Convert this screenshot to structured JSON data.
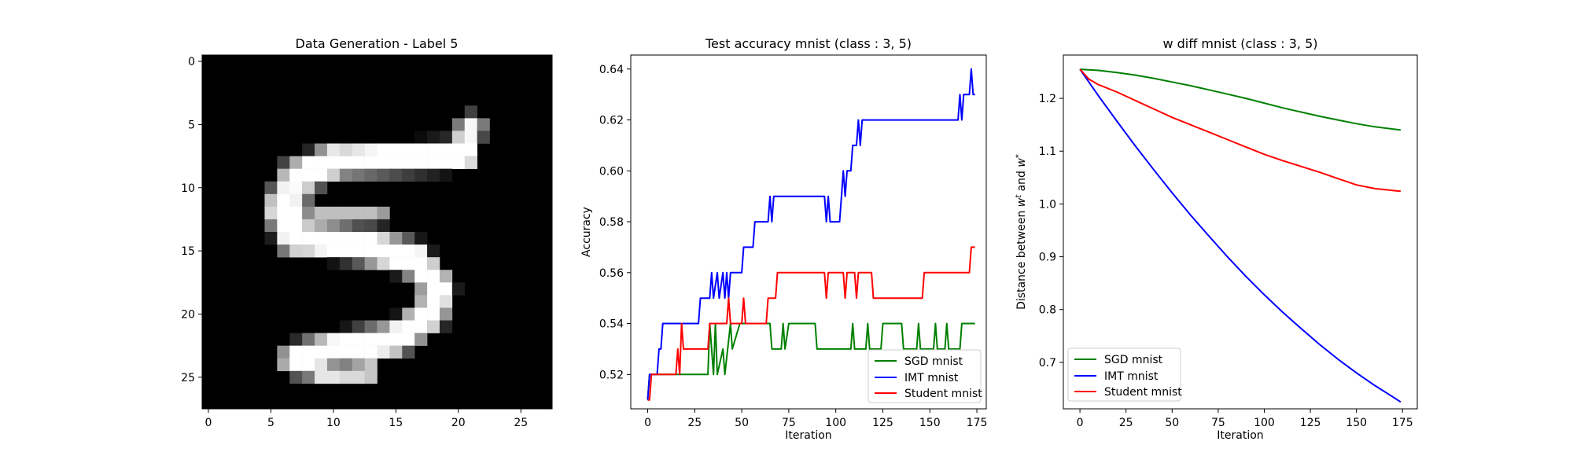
{
  "figure": {
    "background": "#ffffff"
  },
  "chart_data": [
    {
      "type": "heatmap",
      "title": "Data Generation - Label 5",
      "xlim": [
        0,
        27
      ],
      "ylim": [
        0,
        27
      ],
      "xticks": [
        0,
        5,
        10,
        15,
        20,
        25
      ],
      "yticks": [
        0,
        5,
        10,
        15,
        20,
        25
      ],
      "colormap": "gray",
      "value_range": [
        0,
        1
      ],
      "strokes": [
        {
          "from": [
            21,
            5.2
          ],
          "to": [
            20.4,
            7.4
          ],
          "width": 1.4,
          "intensity": 0.97
        },
        {
          "from": [
            20.4,
            7.4
          ],
          "to": [
            10,
            7.9
          ],
          "width": 1.6,
          "intensity": 1.0
        },
        {
          "from": [
            10,
            7.9
          ],
          "to": [
            7.2,
            9.2
          ],
          "width": 1.8,
          "intensity": 1.0
        },
        {
          "from": [
            7.2,
            9.2
          ],
          "to": [
            6,
            11.6
          ],
          "width": 2.0,
          "intensity": 0.95
        },
        {
          "from": [
            6,
            11.6
          ],
          "to": [
            7,
            13.9
          ],
          "width": 2.0,
          "intensity": 1.0
        },
        {
          "from": [
            7,
            13.9
          ],
          "to": [
            12,
            14.5
          ],
          "width": 1.8,
          "intensity": 1.0
        },
        {
          "from": [
            12,
            14.5
          ],
          "to": [
            16.4,
            15.6
          ],
          "width": 1.8,
          "intensity": 1.0
        },
        {
          "from": [
            16.4,
            15.6
          ],
          "to": [
            18.4,
            17.9
          ],
          "width": 1.7,
          "intensity": 1.0
        },
        {
          "from": [
            18.4,
            17.9
          ],
          "to": [
            17.8,
            20
          ],
          "width": 1.7,
          "intensity": 1.0
        },
        {
          "from": [
            17.8,
            20
          ],
          "to": [
            15,
            22
          ],
          "width": 1.7,
          "intensity": 1.0
        },
        {
          "from": [
            15,
            22
          ],
          "to": [
            10,
            22.8
          ],
          "width": 1.7,
          "intensity": 1.0
        },
        {
          "from": [
            10,
            22.8
          ],
          "to": [
            7,
            23.6
          ],
          "width": 1.7,
          "intensity": 1.0
        },
        {
          "from": [
            7,
            23.6
          ],
          "to": [
            9.6,
            24.8
          ],
          "width": 1.2,
          "intensity": 0.9
        },
        {
          "from": [
            9.6,
            24.8
          ],
          "to": [
            13,
            24.5
          ],
          "width": 1.0,
          "intensity": 0.85
        },
        {
          "from": [
            8.5,
            12.2
          ],
          "to": [
            13.6,
            12.3
          ],
          "width": 0.9,
          "intensity": 0.75
        }
      ]
    },
    {
      "type": "line",
      "title": "Test accuracy mnist (class : 3, 5)",
      "xlabel": "Iteration",
      "ylabel": "Accuracy",
      "xlim": [
        -9,
        180
      ],
      "ylim": [
        0.5065,
        0.6455
      ],
      "xticks": [
        0,
        25,
        50,
        75,
        100,
        125,
        150,
        175
      ],
      "yticks": [
        0.52,
        0.54,
        0.56,
        0.58,
        0.6,
        0.62,
        0.64
      ],
      "ytick_labels": [
        "0.52",
        "0.54",
        "0.56",
        "0.58",
        "0.60",
        "0.62",
        "0.64"
      ],
      "legend": "bottom-right",
      "series": [
        {
          "name": "SGD mnist",
          "color": "#008000",
          "points": [
            [
              0,
              0.51
            ],
            [
              1,
              0.52
            ],
            [
              32,
              0.52
            ],
            [
              33,
              0.54
            ],
            [
              35,
              0.52
            ],
            [
              36,
              0.54
            ],
            [
              37,
              0.52
            ],
            [
              40,
              0.53
            ],
            [
              41,
              0.52
            ],
            [
              44,
              0.54
            ],
            [
              45,
              0.53
            ],
            [
              49,
              0.54
            ],
            [
              65,
              0.54
            ],
            [
              66,
              0.53
            ],
            [
              71,
              0.53
            ],
            [
              72,
              0.54
            ],
            [
              73,
              0.53
            ],
            [
              75,
              0.54
            ],
            [
              89,
              0.54
            ],
            [
              90,
              0.53
            ],
            [
              108,
              0.53
            ],
            [
              109,
              0.54
            ],
            [
              110,
              0.53
            ],
            [
              116,
              0.53
            ],
            [
              117,
              0.54
            ],
            [
              118,
              0.53
            ],
            [
              124,
              0.53
            ],
            [
              125,
              0.54
            ],
            [
              135,
              0.54
            ],
            [
              136,
              0.53
            ],
            [
              143,
              0.53
            ],
            [
              144,
              0.54
            ],
            [
              145,
              0.53
            ],
            [
              152,
              0.53
            ],
            [
              153,
              0.54
            ],
            [
              154,
              0.53
            ],
            [
              158,
              0.53
            ],
            [
              159,
              0.54
            ],
            [
              160,
              0.53
            ],
            [
              166,
              0.53
            ],
            [
              167,
              0.54
            ],
            [
              174,
              0.54
            ]
          ]
        },
        {
          "name": "IMT mnist",
          "color": "#0000ff",
          "points": [
            [
              0,
              0.51
            ],
            [
              1,
              0.52
            ],
            [
              5,
              0.52
            ],
            [
              6,
              0.53
            ],
            [
              7,
              0.53
            ],
            [
              8,
              0.54
            ],
            [
              27,
              0.54
            ],
            [
              28,
              0.55
            ],
            [
              33,
              0.55
            ],
            [
              34,
              0.56
            ],
            [
              35,
              0.55
            ],
            [
              37,
              0.56
            ],
            [
              38,
              0.55
            ],
            [
              40,
              0.56
            ],
            [
              41,
              0.55
            ],
            [
              42,
              0.56
            ],
            [
              43,
              0.55
            ],
            [
              44,
              0.56
            ],
            [
              50,
              0.56
            ],
            [
              51,
              0.57
            ],
            [
              56,
              0.57
            ],
            [
              57,
              0.58
            ],
            [
              64,
              0.58
            ],
            [
              65,
              0.59
            ],
            [
              66,
              0.58
            ],
            [
              67,
              0.59
            ],
            [
              94,
              0.59
            ],
            [
              95,
              0.58
            ],
            [
              96,
              0.59
            ],
            [
              97,
              0.58
            ],
            [
              102,
              0.58
            ],
            [
              103,
              0.59
            ],
            [
              104,
              0.6
            ],
            [
              105,
              0.59
            ],
            [
              106,
              0.6
            ],
            [
              108,
              0.6
            ],
            [
              109,
              0.61
            ],
            [
              111,
              0.61
            ],
            [
              112,
              0.62
            ],
            [
              113,
              0.61
            ],
            [
              114,
              0.62
            ],
            [
              165,
              0.62
            ],
            [
              166,
              0.63
            ],
            [
              167,
              0.62
            ],
            [
              168,
              0.63
            ],
            [
              171,
              0.63
            ],
            [
              172,
              0.64
            ],
            [
              173,
              0.63
            ],
            [
              174,
              0.63
            ]
          ]
        },
        {
          "name": "Student mnist",
          "color": "#ff0000",
          "points": [
            [
              0,
              0.51
            ],
            [
              1,
              0.51
            ],
            [
              2,
              0.52
            ],
            [
              15,
              0.52
            ],
            [
              16,
              0.53
            ],
            [
              17,
              0.52
            ],
            [
              18,
              0.54
            ],
            [
              19,
              0.53
            ],
            [
              32,
              0.53
            ],
            [
              33,
              0.54
            ],
            [
              42,
              0.54
            ],
            [
              43,
              0.55
            ],
            [
              44,
              0.54
            ],
            [
              50,
              0.54
            ],
            [
              51,
              0.55
            ],
            [
              52,
              0.54
            ],
            [
              63,
              0.54
            ],
            [
              64,
              0.55
            ],
            [
              68,
              0.55
            ],
            [
              69,
              0.56
            ],
            [
              94,
              0.56
            ],
            [
              95,
              0.55
            ],
            [
              96,
              0.56
            ],
            [
              104,
              0.56
            ],
            [
              105,
              0.55
            ],
            [
              106,
              0.56
            ],
            [
              110,
              0.56
            ],
            [
              111,
              0.55
            ],
            [
              112,
              0.56
            ],
            [
              119,
              0.56
            ],
            [
              120,
              0.55
            ],
            [
              146,
              0.55
            ],
            [
              147,
              0.56
            ],
            [
              171,
              0.56
            ],
            [
              172,
              0.57
            ],
            [
              174,
              0.57
            ]
          ]
        }
      ]
    },
    {
      "type": "line",
      "title": "w diff mnist (class : 3, 5)",
      "xlabel": "Iteration",
      "ylabel": "Distance between w^t and w^*",
      "xlim": [
        -9,
        183
      ],
      "ylim": [
        0.612,
        1.282
      ],
      "xticks": [
        0,
        25,
        50,
        75,
        100,
        125,
        150,
        175
      ],
      "yticks": [
        0.7,
        0.8,
        0.9,
        1.0,
        1.1,
        1.2
      ],
      "ytick_labels": [
        "0.7",
        "0.8",
        "0.9",
        "1.0",
        "1.1",
        "1.2"
      ],
      "legend": "bottom-left",
      "series": [
        {
          "name": "SGD mnist",
          "color": "#008000",
          "points": [
            [
              0,
              1.255
            ],
            [
              10,
              1.253
            ],
            [
              20,
              1.249
            ],
            [
              30,
              1.244
            ],
            [
              40,
              1.238
            ],
            [
              50,
              1.231
            ],
            [
              60,
              1.224
            ],
            [
              70,
              1.216
            ],
            [
              80,
              1.208
            ],
            [
              90,
              1.2
            ],
            [
              100,
              1.191
            ],
            [
              110,
              1.182
            ],
            [
              120,
              1.174
            ],
            [
              130,
              1.166
            ],
            [
              140,
              1.159
            ],
            [
              150,
              1.152
            ],
            [
              160,
              1.146
            ],
            [
              174,
              1.14
            ]
          ]
        },
        {
          "name": "IMT mnist",
          "color": "#0000ff",
          "points": [
            [
              0,
              1.255
            ],
            [
              10,
              1.205
            ],
            [
              20,
              1.157
            ],
            [
              30,
              1.11
            ],
            [
              40,
              1.065
            ],
            [
              50,
              1.021
            ],
            [
              60,
              0.979
            ],
            [
              70,
              0.939
            ],
            [
              80,
              0.9
            ],
            [
              90,
              0.863
            ],
            [
              100,
              0.828
            ],
            [
              110,
              0.795
            ],
            [
              120,
              0.764
            ],
            [
              130,
              0.734
            ],
            [
              140,
              0.706
            ],
            [
              150,
              0.68
            ],
            [
              160,
              0.656
            ],
            [
              170,
              0.634
            ],
            [
              174,
              0.625
            ]
          ]
        },
        {
          "name": "Student mnist",
          "color": "#ff0000",
          "points": [
            [
              0,
              1.255
            ],
            [
              5,
              1.236
            ],
            [
              10,
              1.226
            ],
            [
              20,
              1.212
            ],
            [
              30,
              1.196
            ],
            [
              40,
              1.18
            ],
            [
              50,
              1.164
            ],
            [
              60,
              1.15
            ],
            [
              70,
              1.136
            ],
            [
              80,
              1.122
            ],
            [
              90,
              1.108
            ],
            [
              100,
              1.094
            ],
            [
              110,
              1.082
            ],
            [
              120,
              1.071
            ],
            [
              130,
              1.06
            ],
            [
              140,
              1.048
            ],
            [
              150,
              1.036
            ],
            [
              160,
              1.029
            ],
            [
              174,
              1.024
            ]
          ]
        }
      ]
    }
  ]
}
